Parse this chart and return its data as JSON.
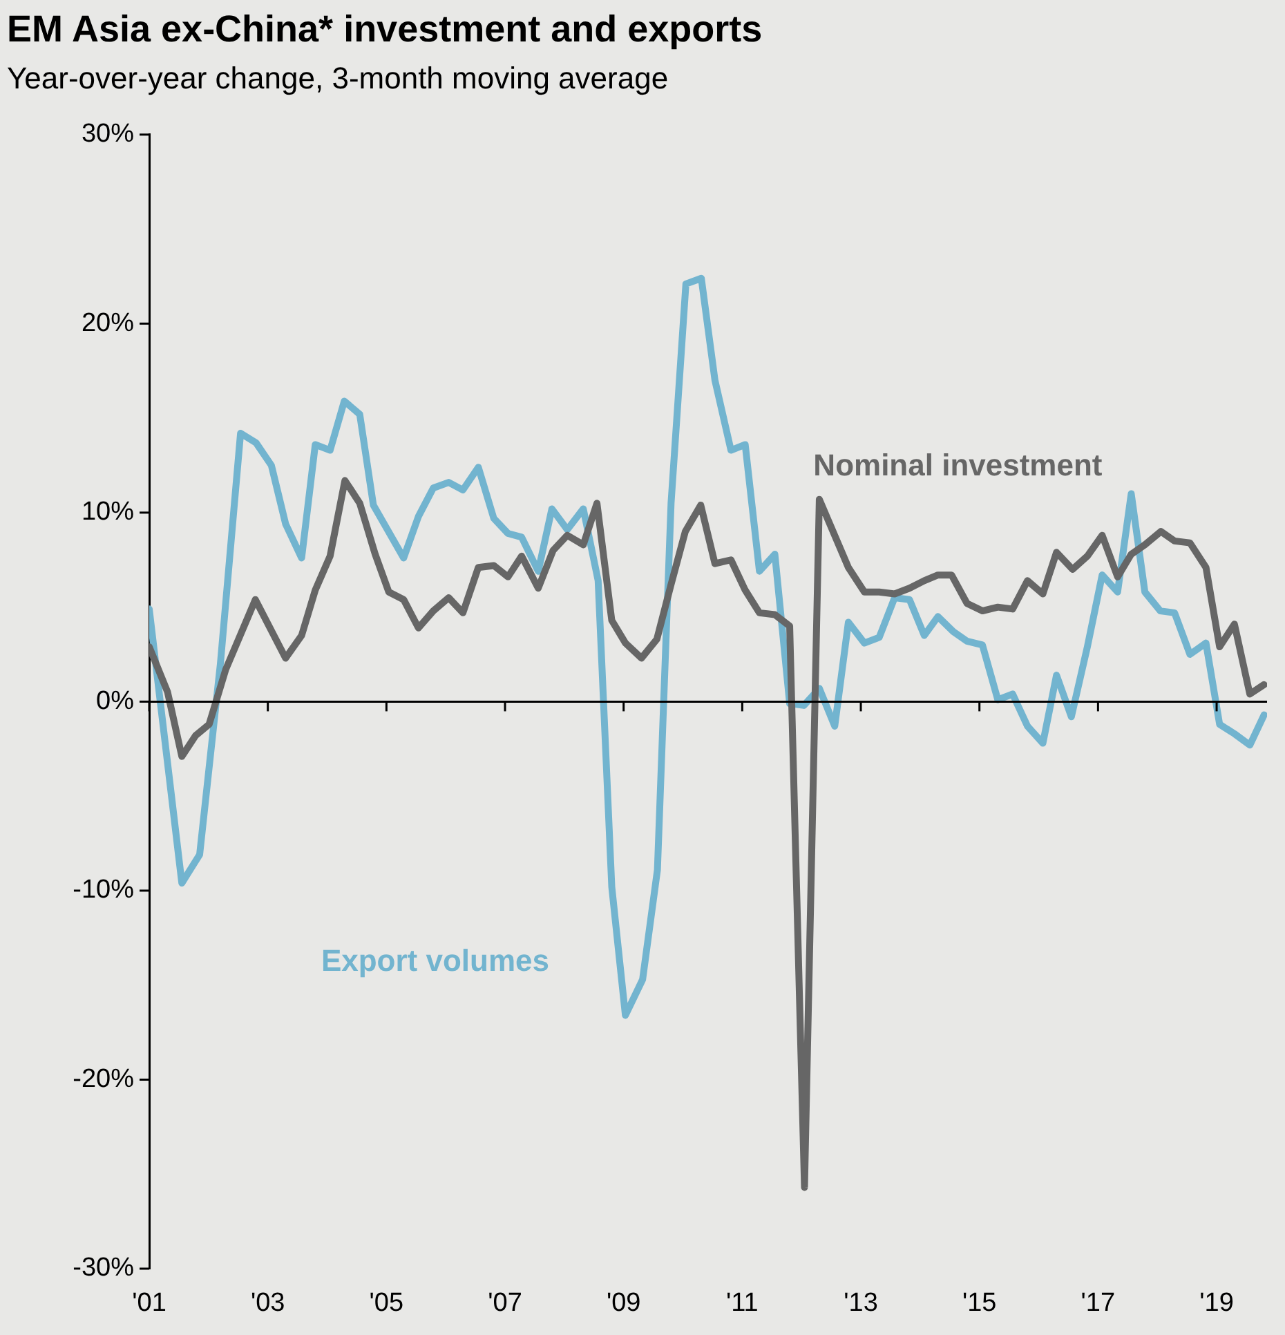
{
  "chart_data": {
    "type": "line",
    "title": "EM Asia ex-China* investment and exports",
    "subtitle": "Year-over-year change, 3-month moving average",
    "xlim": [
      2001,
      2019.85
    ],
    "xticks": [
      {
        "value": 2001,
        "label": "'01"
      },
      {
        "value": 2003,
        "label": "'03"
      },
      {
        "value": 2005,
        "label": "'05"
      },
      {
        "value": 2007,
        "label": "'07"
      },
      {
        "value": 2009,
        "label": "'09"
      },
      {
        "value": 2011,
        "label": "'11"
      },
      {
        "value": 2013,
        "label": "'13"
      },
      {
        "value": 2015,
        "label": "'15"
      },
      {
        "value": 2017,
        "label": "'17"
      },
      {
        "value": 2019,
        "label": "'19"
      }
    ],
    "ylim": [
      -30,
      30
    ],
    "yticks": [
      {
        "value": -30,
        "label": "-30%"
      },
      {
        "value": -20,
        "label": "-20%"
      },
      {
        "value": -10,
        "label": "-10%"
      },
      {
        "value": 0,
        "label": "0%"
      },
      {
        "value": 10,
        "label": "10%"
      },
      {
        "value": 20,
        "label": "20%"
      },
      {
        "value": 30,
        "label": "30%"
      }
    ],
    "grid": false,
    "legend": false,
    "ref_lines": [
      {
        "axis": "y",
        "value": 0,
        "color": "#000000"
      }
    ],
    "marker": "none",
    "line_style": "solid",
    "series": [
      {
        "name": "Nominal investment",
        "color": "#666666",
        "x": [
          2001.0,
          2001.31,
          2001.55,
          2001.78,
          2002.01,
          2002.29,
          2002.79,
          2003.3,
          2003.57,
          2003.8,
          2004.05,
          2004.3,
          2004.55,
          2004.81,
          2005.04,
          2005.29,
          2005.54,
          2005.79,
          2006.05,
          2006.29,
          2006.55,
          2006.81,
          2007.05,
          2007.28,
          2007.56,
          2007.81,
          2008.05,
          2008.32,
          2008.55,
          2008.8,
          2009.03,
          2009.3,
          2009.56,
          2009.8,
          2010.04,
          2010.3,
          2010.54,
          2010.81,
          2011.05,
          2011.29,
          2011.55,
          2011.8,
          2012.05,
          2012.3,
          2012.79,
          2013.06,
          2013.31,
          2013.57,
          2013.82,
          2014.07,
          2014.3,
          2014.53,
          2014.79,
          2015.05,
          2015.31,
          2015.56,
          2015.81,
          2016.07,
          2016.3,
          2016.57,
          2016.82,
          2017.07,
          2017.33,
          2017.56,
          2017.79,
          2018.06,
          2018.29,
          2018.55,
          2018.82,
          2019.05,
          2019.3,
          2019.56,
          2019.8
        ],
        "values": [
          2.9,
          0.5,
          -2.9,
          -1.8,
          -1.2,
          1.7,
          5.4,
          2.3,
          3.5,
          5.9,
          7.7,
          11.7,
          10.5,
          7.8,
          5.8,
          5.4,
          3.9,
          4.8,
          5.5,
          4.7,
          7.1,
          7.2,
          6.6,
          7.7,
          6.0,
          8.0,
          8.8,
          8.3,
          10.5,
          4.3,
          3.1,
          2.3,
          3.3,
          6.2,
          9.0,
          10.4,
          7.3,
          7.5,
          5.9,
          4.7,
          4.6,
          4.0,
          -25.7,
          10.7,
          7.1,
          5.8,
          5.8,
          5.7,
          6.0,
          6.4,
          6.7,
          6.7,
          5.2,
          4.8,
          5.0,
          4.9,
          6.4,
          5.7,
          7.9,
          7.0,
          7.7,
          8.8,
          6.6,
          7.8,
          8.3,
          9.0,
          8.5,
          8.4,
          7.1,
          2.9,
          4.1,
          0.4,
          0.9
        ]
      },
      {
        "name": "Export volumes",
        "color": "#72b4cf",
        "x": [
          2001.0,
          2001.55,
          2001.85,
          2002.2,
          2002.54,
          2002.8,
          2003.06,
          2003.3,
          2003.57,
          2003.8,
          2004.05,
          2004.29,
          2004.55,
          2004.78,
          2005.29,
          2005.54,
          2005.79,
          2006.05,
          2006.29,
          2006.55,
          2006.81,
          2007.05,
          2007.28,
          2007.56,
          2007.79,
          2008.05,
          2008.32,
          2008.57,
          2008.8,
          2009.03,
          2009.32,
          2009.57,
          2009.8,
          2010.05,
          2010.31,
          2010.54,
          2010.81,
          2011.05,
          2011.29,
          2011.55,
          2011.8,
          2012.04,
          2012.3,
          2012.56,
          2012.79,
          2013.06,
          2013.31,
          2013.57,
          2013.82,
          2014.07,
          2014.3,
          2014.56,
          2014.79,
          2015.05,
          2015.31,
          2015.56,
          2015.81,
          2016.07,
          2016.3,
          2016.55,
          2016.82,
          2017.07,
          2017.33,
          2017.56,
          2017.79,
          2018.05,
          2018.29,
          2018.55,
          2018.82,
          2019.05,
          2019.3,
          2019.56,
          2019.8
        ],
        "values": [
          4.9,
          -9.6,
          -8.1,
          2.0,
          14.2,
          13.7,
          12.5,
          9.4,
          7.6,
          13.6,
          13.3,
          15.9,
          15.2,
          10.4,
          7.6,
          9.8,
          11.3,
          11.6,
          11.2,
          12.4,
          9.7,
          8.9,
          8.7,
          6.9,
          10.2,
          9.1,
          10.2,
          6.4,
          -9.8,
          -16.6,
          -14.7,
          -8.9,
          10.5,
          22.1,
          22.4,
          17.0,
          13.3,
          13.6,
          6.9,
          7.8,
          -0.1,
          -0.2,
          0.7,
          -1.3,
          4.2,
          3.1,
          3.4,
          5.5,
          5.4,
          3.5,
          4.5,
          3.7,
          3.2,
          3.0,
          0.1,
          0.4,
          -1.3,
          -2.2,
          1.4,
          -0.8,
          2.9,
          6.7,
          5.8,
          11.0,
          5.8,
          4.8,
          4.7,
          2.5,
          3.1,
          -1.2,
          -1.7,
          -2.3,
          -0.7
        ]
      }
    ]
  }
}
